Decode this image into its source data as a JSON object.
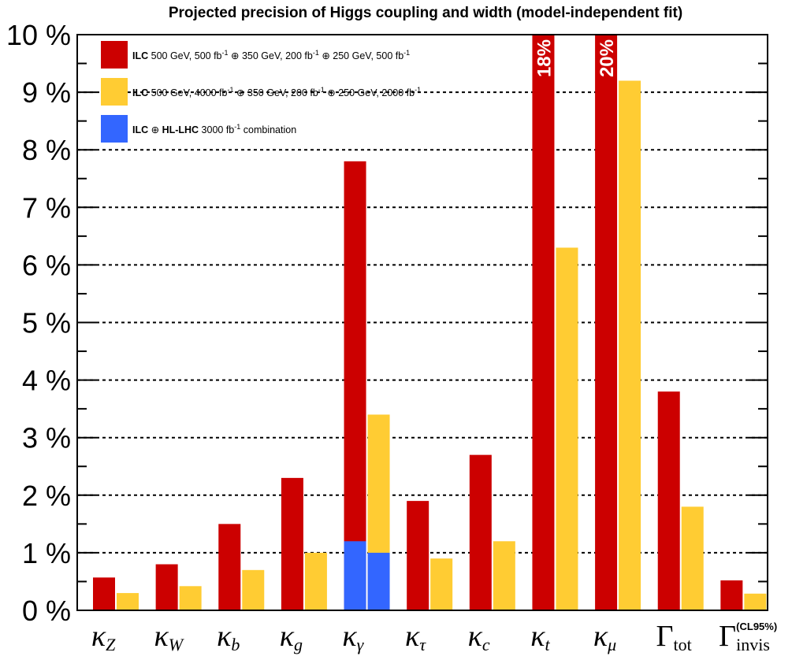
{
  "chart_data": {
    "type": "bar",
    "title": "Projected precision of Higgs coupling and width (model-independent fit)",
    "categories": [
      {
        "main": "κ",
        "sub": "Z",
        "italic": true
      },
      {
        "main": "κ",
        "sub": "W",
        "italic": true
      },
      {
        "main": "κ",
        "sub": "b",
        "italic": true
      },
      {
        "main": "κ",
        "sub": "g",
        "italic": true
      },
      {
        "main": "κ",
        "sub": "γ",
        "italic": true
      },
      {
        "main": "κ",
        "sub": "τ",
        "italic": true
      },
      {
        "main": "κ",
        "sub": "c",
        "italic": true
      },
      {
        "main": "κ",
        "sub": "t",
        "italic": true
      },
      {
        "main": "κ",
        "sub": "μ",
        "italic": true
      },
      {
        "main": "Γ",
        "sub": "tot",
        "italic": false
      },
      {
        "main": "Γ",
        "sub": "invis",
        "sup": "(CL95%)",
        "italic": false
      }
    ],
    "series": [
      {
        "name": "ILC 500 GeV,   500 fb-1 ⊕ 350 GeV, 200 fb-1 ⊕ 250 GeV,   500 fb-1",
        "color": "#cc0000",
        "values": [
          0.57,
          0.8,
          1.5,
          2.3,
          7.8,
          1.9,
          2.7,
          18,
          20,
          3.8,
          0.52
        ],
        "value_labels": [
          null,
          null,
          null,
          null,
          null,
          null,
          null,
          "18%",
          "20%",
          null,
          null
        ]
      },
      {
        "name": "ILC 500 GeV, 4000 fb-1 ⊕ 350 GeV, 200 fb-1 ⊕ 250 GeV, 2000 fb-1",
        "color": "#ffcc33",
        "values": [
          0.3,
          0.42,
          0.7,
          1.0,
          3.4,
          0.9,
          1.2,
          6.3,
          9.2,
          1.8,
          0.29
        ]
      },
      {
        "name": "ILC ⊕ HL-LHC 3000 fb-1 combination",
        "color": "#3366ff",
        "values": [
          null,
          null,
          null,
          null,
          [
            1.2,
            1.0
          ],
          null,
          null,
          null,
          null,
          null,
          null
        ]
      }
    ],
    "ylim": [
      0,
      10
    ],
    "yticks": [
      {
        "value": 0,
        "label": "0 %"
      },
      {
        "value": 1,
        "label": "1 %"
      },
      {
        "value": 2,
        "label": "2 %"
      },
      {
        "value": 3,
        "label": "3 %"
      },
      {
        "value": 4,
        "label": "4 %"
      },
      {
        "value": 5,
        "label": "5 %"
      },
      {
        "value": 6,
        "label": "6 %"
      },
      {
        "value": 7,
        "label": "7 %"
      },
      {
        "value": 8,
        "label": "8 %"
      },
      {
        "value": 9,
        "label": "9 %"
      },
      {
        "value": 10,
        "label": "10 %"
      }
    ],
    "yminor": [
      0.5,
      1.5,
      2.5,
      3.5,
      4.5,
      5.5,
      6.5,
      7.5,
      8.5,
      9.5
    ],
    "grid": true,
    "legend": "top-left"
  }
}
